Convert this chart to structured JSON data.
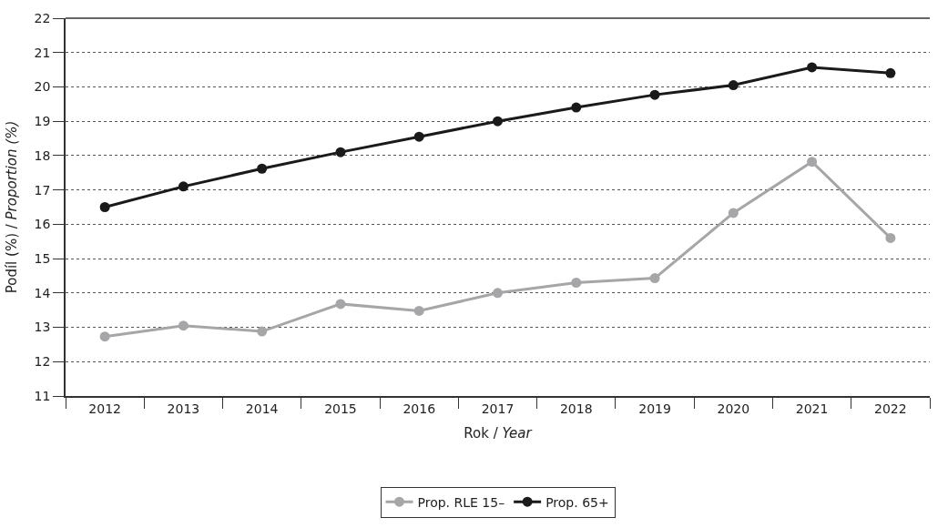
{
  "chart_data": {
    "type": "line",
    "xlabel": "Rok / Year",
    "ylabel": "Podíl (%) / Proportion (%)",
    "categories": [
      "2012",
      "2013",
      "2014",
      "2015",
      "2016",
      "2017",
      "2018",
      "2019",
      "2020",
      "2021",
      "2022"
    ],
    "series": [
      {
        "name": "Prop. RLE 15–",
        "color": "#a6a6a8",
        "values": [
          12.73,
          13.05,
          12.88,
          13.68,
          13.48,
          14.0,
          14.3,
          14.43,
          16.33,
          17.82,
          15.6
        ]
      },
      {
        "name": "Prop. 65+",
        "color": "#1a1a1a",
        "values": [
          16.5,
          17.1,
          17.62,
          18.1,
          18.55,
          19.0,
          19.4,
          19.77,
          20.05,
          20.57,
          20.4
        ]
      }
    ],
    "ylim": [
      11,
      22
    ],
    "yticks": [
      11,
      12,
      13,
      14,
      15,
      16,
      17,
      18,
      19,
      20,
      21,
      22
    ],
    "grid": "y",
    "legend": "bottom",
    "marker": "circle",
    "line_style": "solid"
  }
}
